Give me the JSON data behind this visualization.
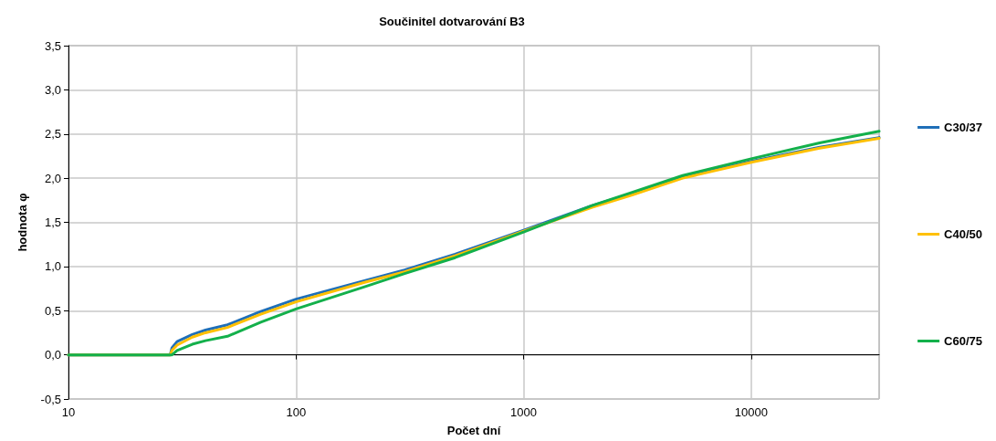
{
  "chart_data": {
    "type": "line",
    "title": "Součinitel dotvarování B3",
    "xlabel": "Počet dní",
    "ylabel": "hodnota φ",
    "log": "x",
    "x": [
      10,
      28,
      28.5,
      30,
      35,
      40,
      50,
      70,
      100,
      200,
      300,
      500,
      1000,
      2000,
      3000,
      5000,
      10000,
      20000,
      36500
    ],
    "series": [
      {
        "name": "C30/37",
        "color": "#1f6fb8",
        "values": [
          0,
          0,
          0.08,
          0.15,
          0.23,
          0.28,
          0.34,
          0.49,
          0.63,
          0.84,
          0.96,
          1.14,
          1.41,
          1.69,
          1.83,
          2.01,
          2.19,
          2.35,
          2.46
        ]
      },
      {
        "name": "C40/50",
        "color": "#ffc000",
        "values": [
          0,
          0,
          0.05,
          0.11,
          0.2,
          0.25,
          0.31,
          0.46,
          0.6,
          0.82,
          0.94,
          1.12,
          1.4,
          1.67,
          1.81,
          2.0,
          2.18,
          2.34,
          2.45
        ]
      },
      {
        "name": "C60/75",
        "color": "#13b04b",
        "values": [
          0,
          0,
          0.0,
          0.05,
          0.12,
          0.16,
          0.21,
          0.37,
          0.52,
          0.77,
          0.92,
          1.1,
          1.39,
          1.69,
          1.84,
          2.03,
          2.22,
          2.4,
          2.53
        ]
      }
    ],
    "xlim": [
      10,
      36500
    ],
    "xticks": [
      10,
      100,
      1000,
      10000
    ],
    "ylim": [
      -0.5,
      3.5
    ],
    "yticks": [
      {
        "value": -0.5,
        "label": "-0,5"
      },
      {
        "value": 0,
        "label": "0,0"
      },
      {
        "value": 0.5,
        "label": "0,5"
      },
      {
        "value": 1,
        "label": "1,0"
      },
      {
        "value": 1.5,
        "label": "1,5"
      },
      {
        "value": 2,
        "label": "2,0"
      },
      {
        "value": 2.5,
        "label": "2,5"
      },
      {
        "value": 3,
        "label": "3,0"
      },
      {
        "value": 3.5,
        "label": "3,5"
      }
    ],
    "grid": true,
    "legend": "right",
    "marker": "none",
    "line_style": "solid"
  }
}
